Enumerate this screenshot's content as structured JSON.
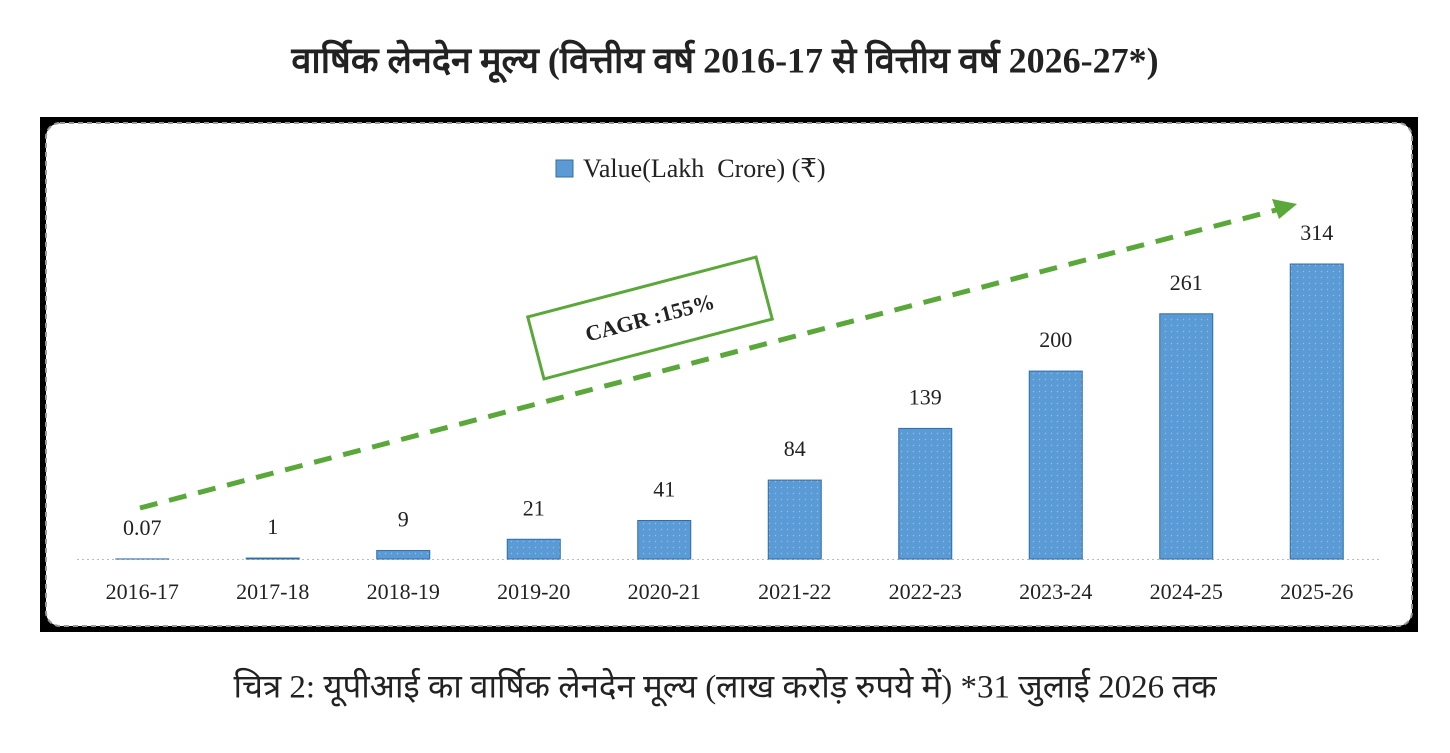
{
  "chart_data": {
    "type": "bar",
    "title": "वार्षिक लेनदेन मूल्य (वित्तीय वर्ष 2016-17 से वित्तीय वर्ष 2026-27*)",
    "caption": "चित्र 2: यूपीआई का वार्षिक लेनदेन मूल्य (लाख करोड़ रुपये में) *31 जुलाई 2026 तक",
    "annotation": "CAGR :155%",
    "categories": [
      "2016-17",
      "2017-18",
      "2018-19",
      "2019-20",
      "2020-21",
      "2021-22",
      "2022-23",
      "2023-24",
      "2024-25",
      "2025-26"
    ],
    "series": [
      {
        "name": "Value(Lakh  Crore) (₹)",
        "color": "#5b9bd5",
        "values": [
          0.07,
          1,
          9,
          21,
          41,
          84,
          139,
          200,
          261,
          314
        ]
      }
    ]
  }
}
